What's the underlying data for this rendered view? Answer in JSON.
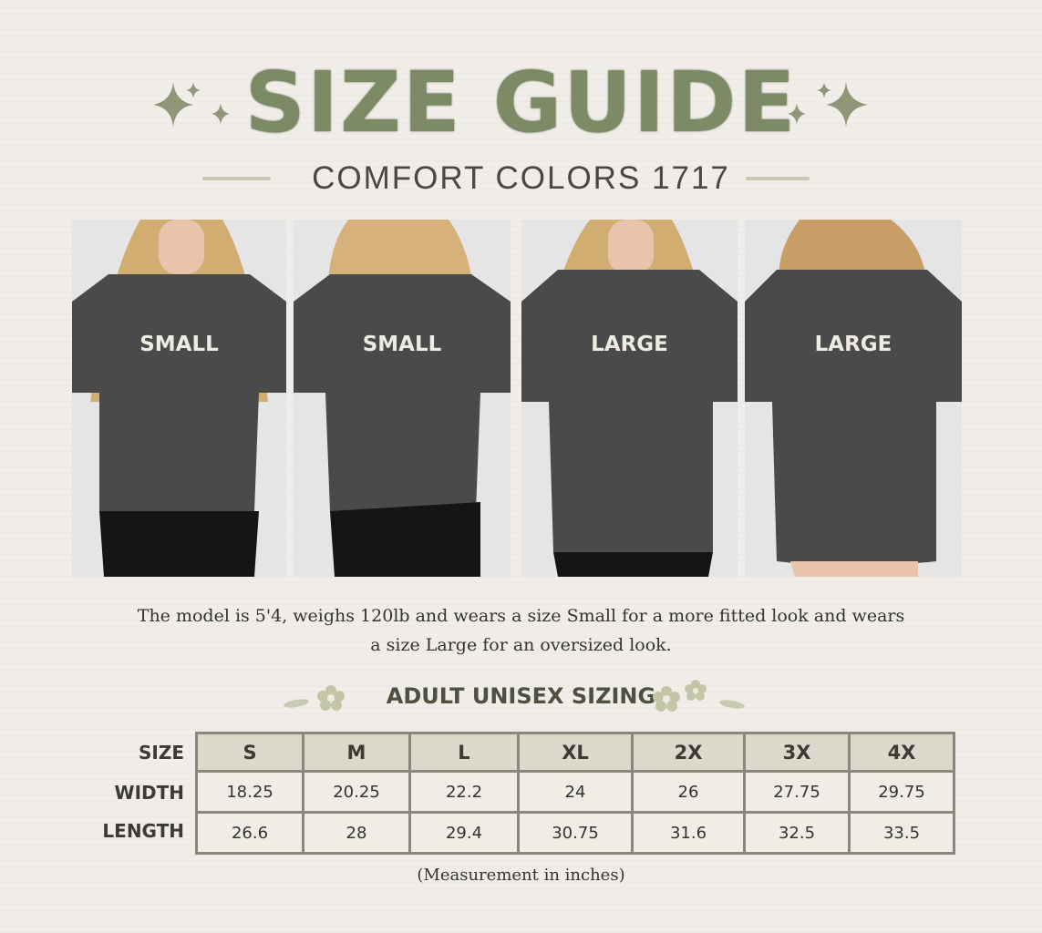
{
  "header": {
    "title": "SIZE GUIDE",
    "subtitle": "COMFORT COLORS 1717",
    "accent_color": "#7d8a66"
  },
  "photos": [
    {
      "label": "SMALL",
      "view": "front"
    },
    {
      "label": "SMALL",
      "view": "back"
    },
    {
      "label": "LARGE",
      "view": "front"
    },
    {
      "label": "LARGE",
      "view": "back"
    }
  ],
  "description": {
    "line1": "The model is 5'4, weighs 120lb and wears a size Small for a more fitted look and wears",
    "line2": "a size Large for an oversized look."
  },
  "sizing": {
    "title": "ADULT UNISEX SIZING",
    "row_labels": [
      "SIZE",
      "WIDTH",
      "LENGTH"
    ],
    "sizes": [
      "S",
      "M",
      "L",
      "XL",
      "2X",
      "3X",
      "4X"
    ],
    "width": [
      "18.25",
      "20.25",
      "22.2",
      "24",
      "26",
      "27.75",
      "29.75"
    ],
    "length": [
      "26.6",
      "28",
      "29.4",
      "30.75",
      "31.6",
      "32.5",
      "33.5"
    ],
    "note": "(Measurement in inches)"
  }
}
